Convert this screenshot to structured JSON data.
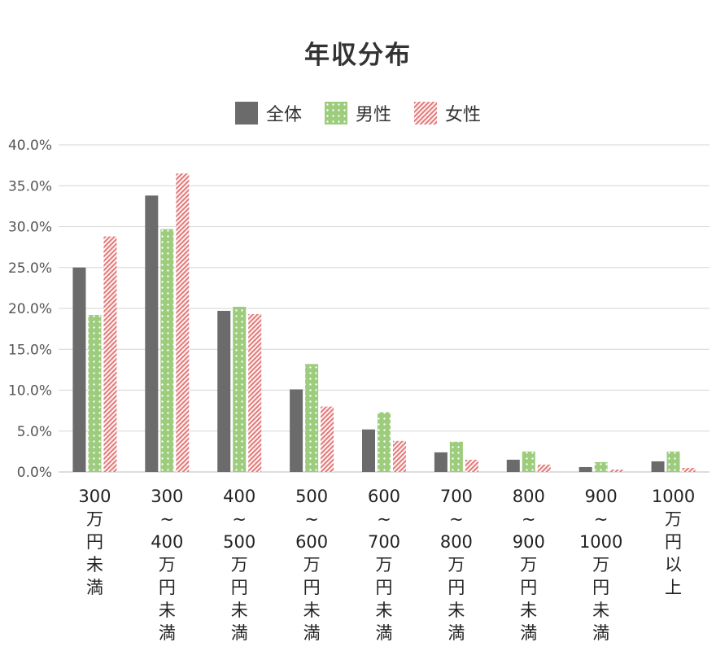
{
  "chart_data": {
    "type": "bar",
    "title": "年収分布",
    "legend_position": "top",
    "grid": true,
    "ylim": [
      0,
      40
    ],
    "yticks": [
      "0.0%",
      "5.0%",
      "10.0%",
      "15.0%",
      "20.0%",
      "25.0%",
      "30.0%",
      "35.0%",
      "40.0%"
    ],
    "categories": [
      [
        "300",
        "万",
        "円",
        "未",
        "満"
      ],
      [
        "300",
        "~",
        "400",
        "万",
        "円",
        "未",
        "満"
      ],
      [
        "400",
        "~",
        "500",
        "万",
        "円",
        "未",
        "満"
      ],
      [
        "500",
        "~",
        "600",
        "万",
        "円",
        "未",
        "満"
      ],
      [
        "600",
        "~",
        "700",
        "万",
        "円",
        "未",
        "満"
      ],
      [
        "700",
        "~",
        "800",
        "万",
        "円",
        "未",
        "満"
      ],
      [
        "800",
        "~",
        "900",
        "万",
        "円",
        "未",
        "満"
      ],
      [
        "900",
        "~",
        "1000",
        "万",
        "円",
        "未",
        "満"
      ],
      [
        "1000",
        "万",
        "円",
        "以",
        "上"
      ]
    ],
    "series": [
      {
        "name": "全体",
        "color": "#6b6b6b",
        "pattern": "solid",
        "values": [
          25.0,
          33.8,
          19.7,
          10.1,
          5.2,
          2.4,
          1.5,
          0.6,
          1.3
        ]
      },
      {
        "name": "男性",
        "color": "#9ccc7c",
        "pattern": "dots",
        "values": [
          19.2,
          29.7,
          20.2,
          13.2,
          7.3,
          3.7,
          2.5,
          1.2,
          2.5
        ]
      },
      {
        "name": "女性",
        "color": "#e57c7c",
        "pattern": "diagonal-stripes",
        "values": [
          28.8,
          36.5,
          19.3,
          8.0,
          3.8,
          1.5,
          0.9,
          0.3,
          0.5
        ]
      }
    ]
  }
}
